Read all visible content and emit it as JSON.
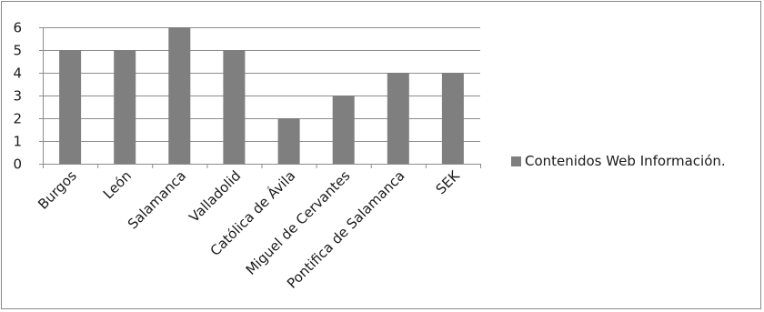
{
  "chart_data": {
    "type": "bar",
    "title": "",
    "xlabel": "",
    "ylabel": "",
    "categories": [
      "Burgos",
      "León",
      "Salamanca",
      "Valladolid",
      "Católica de Ávila",
      "Miguel de Cervantes",
      "Pontifica de Salamanca",
      "SEK"
    ],
    "series": [
      {
        "name": "Contenidos Web Información.",
        "values": [
          5,
          5,
          6,
          5,
          2,
          3,
          4,
          4
        ],
        "color": "#7f7f7f"
      }
    ],
    "yticks": [
      0,
      1,
      2,
      3,
      4,
      5,
      6
    ],
    "ylim": [
      0,
      6
    ],
    "grid": true,
    "legend_position": "right"
  }
}
